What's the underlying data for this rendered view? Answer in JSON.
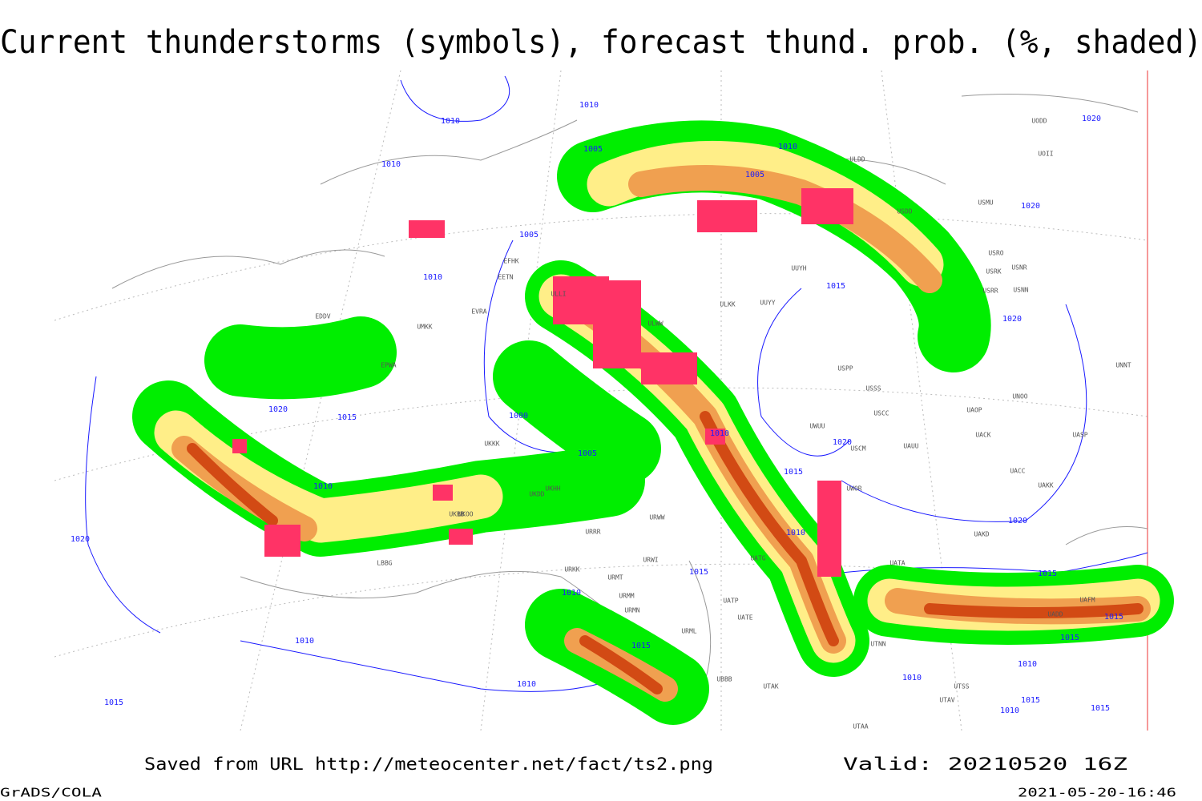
{
  "header": {
    "title": "Current thunderstorms (symbols), forecast thund. prob. (%, shaded)"
  },
  "footer": {
    "source": "Saved from URL http://meteocenter.net/fact/ts2.png",
    "valid": "Valid: 20210520 16Z",
    "software": "GrADS/COLA",
    "timestamp": "2021-05-20-16:46"
  },
  "map": {
    "isobar_labels": [
      "1010",
      "1010",
      "1005",
      "1010",
      "1005",
      "1010",
      "1010",
      "1005",
      "1020",
      "1020",
      "1015",
      "1020",
      "1020",
      "1015",
      "1000",
      "1010",
      "1005",
      "1020",
      "1015",
      "1010",
      "1020",
      "1010",
      "1020",
      "1015",
      "1015",
      "1010",
      "1015",
      "1010",
      "1010",
      "1015",
      "1015",
      "1010",
      "1010",
      "1015",
      "1010",
      "1015",
      "1015"
    ],
    "station_labels": [
      "ULLI",
      "ULWW",
      "UUYY",
      "ULKK",
      "UUYH",
      "USSS",
      "UNOO",
      "UACC",
      "UAKK",
      "UAKD",
      "UATA",
      "UWUU",
      "USPP",
      "ULDD",
      "USDD",
      "USMU",
      "USRO",
      "USRK",
      "USNR",
      "USRR",
      "USNN",
      "UNNT",
      "UACK",
      "UASP",
      "USCC",
      "USCM",
      "UAUU",
      "UAOP",
      "UWOR",
      "URRR",
      "UKKK",
      "UKBB",
      "UKDD",
      "UKHH",
      "UKOO",
      "URWW",
      "URWI",
      "URKK",
      "URMT",
      "URMM",
      "URMN",
      "UATG",
      "UATP",
      "UATE",
      "URML",
      "UBBB",
      "UTAK",
      "UTNN",
      "UTSS",
      "UTAV",
      "UTAA",
      "UAFM",
      "UADD",
      "UODD",
      "UOII",
      "UMKK",
      "EVRA",
      "EETN",
      "EFHK",
      "EPWA",
      "EDDV",
      "LBBG"
    ]
  }
}
